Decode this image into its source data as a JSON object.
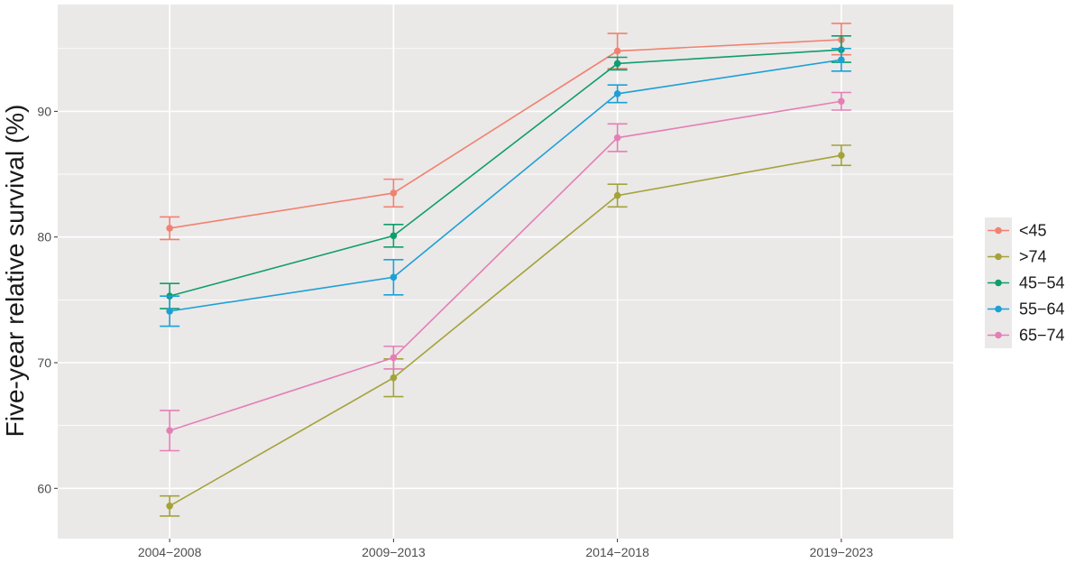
{
  "chart_data": {
    "type": "line",
    "title": "",
    "xlabel": "",
    "ylabel": "Five-year relative survival (%)",
    "categories": [
      "2004−2008",
      "2009−2013",
      "2014−2018",
      "2019−2023"
    ],
    "ylim": [
      56.0,
      98.5
    ],
    "yticks": [
      60,
      70,
      80,
      90
    ],
    "grid": true,
    "legend_position": "right",
    "error_bars": true,
    "series": [
      {
        "name": "<45",
        "color": "#F0826F",
        "values": [
          80.7,
          83.5,
          94.8,
          95.7
        ],
        "lower": [
          79.8,
          82.4,
          93.4,
          94.5
        ],
        "upper": [
          81.6,
          84.6,
          96.2,
          97.0
        ]
      },
      {
        "name": ">74",
        "color": "#A3A33A",
        "values": [
          58.6,
          68.8,
          83.3,
          86.5
        ],
        "lower": [
          57.8,
          67.3,
          82.4,
          85.7
        ],
        "upper": [
          59.4,
          70.3,
          84.2,
          87.3
        ]
      },
      {
        "name": "45−54",
        "color": "#0E9E6E",
        "values": [
          75.3,
          80.1,
          93.8,
          94.9
        ],
        "lower": [
          74.3,
          79.2,
          93.3,
          93.9
        ],
        "upper": [
          76.3,
          81.0,
          94.3,
          96.0
        ]
      },
      {
        "name": "55−64",
        "color": "#1BA1D6",
        "values": [
          74.1,
          76.8,
          91.4,
          94.1
        ],
        "lower": [
          72.9,
          75.4,
          90.7,
          93.2
        ],
        "upper": [
          75.3,
          78.2,
          92.1,
          95.0
        ]
      },
      {
        "name": "65−74",
        "color": "#E47FB5",
        "values": [
          64.6,
          70.4,
          87.9,
          90.8
        ],
        "lower": [
          63.0,
          69.5,
          86.8,
          90.1
        ],
        "upper": [
          66.2,
          71.3,
          89.0,
          91.5
        ]
      }
    ]
  }
}
